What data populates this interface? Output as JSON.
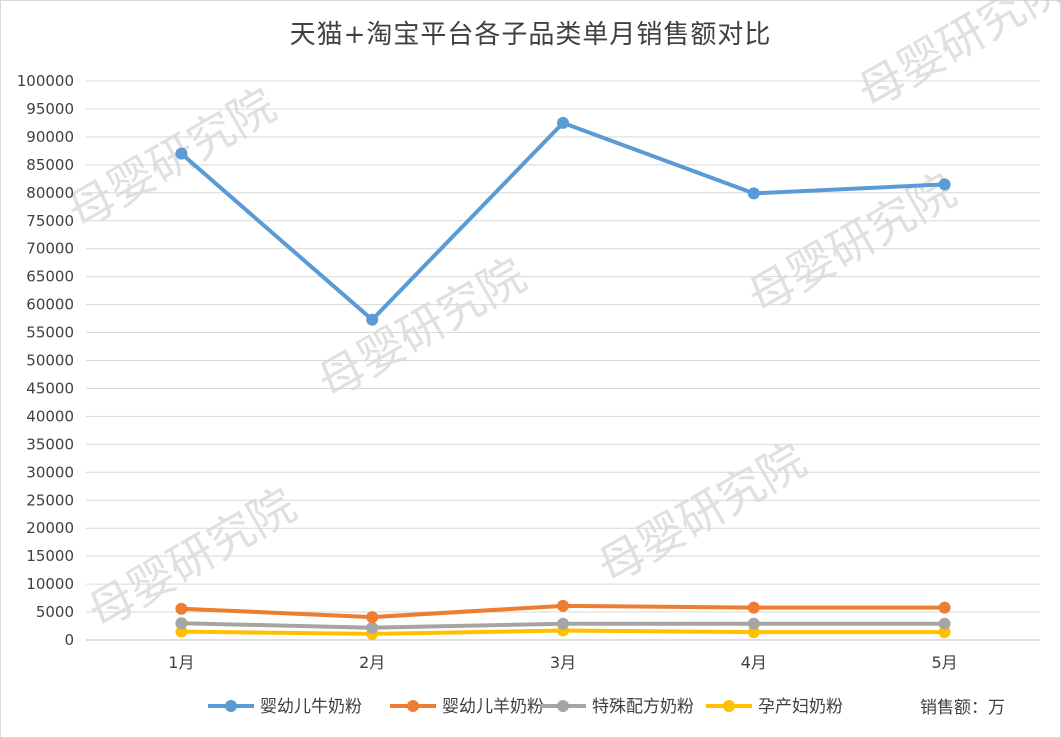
{
  "chart_data": {
    "type": "line",
    "title": "天猫+淘宝平台各子品类单月销售额对比",
    "categories": [
      "1月",
      "2月",
      "3月",
      "4月",
      "5月"
    ],
    "ylim": [
      0,
      100000
    ],
    "ytick_step": 5000,
    "ytick_labels": [
      "0",
      "5000",
      "10000",
      "15000",
      "20000",
      "25000",
      "30000",
      "35000",
      "40000",
      "45000",
      "50000",
      "55000",
      "60000",
      "65000",
      "70000",
      "75000",
      "80000",
      "85000",
      "90000",
      "95000",
      "100000"
    ],
    "grid": true,
    "legend_position": "bottom",
    "unit_label": "销售额：万",
    "series": [
      {
        "name": "婴幼儿牛奶粉",
        "color": "#5b9bd5",
        "values": [
          87000,
          57300,
          92500,
          79900,
          81500
        ]
      },
      {
        "name": "婴幼儿羊奶粉",
        "color": "#ed7d31",
        "values": [
          5600,
          4100,
          6100,
          5800,
          5800
        ]
      },
      {
        "name": "特殊配方奶粉",
        "color": "#a5a5a5",
        "values": [
          3000,
          2200,
          2900,
          2900,
          2900
        ]
      },
      {
        "name": "孕产妇奶粉",
        "color": "#ffc000",
        "values": [
          1500,
          1100,
          1700,
          1400,
          1400
        ]
      }
    ]
  },
  "watermark": "母婴研究院"
}
